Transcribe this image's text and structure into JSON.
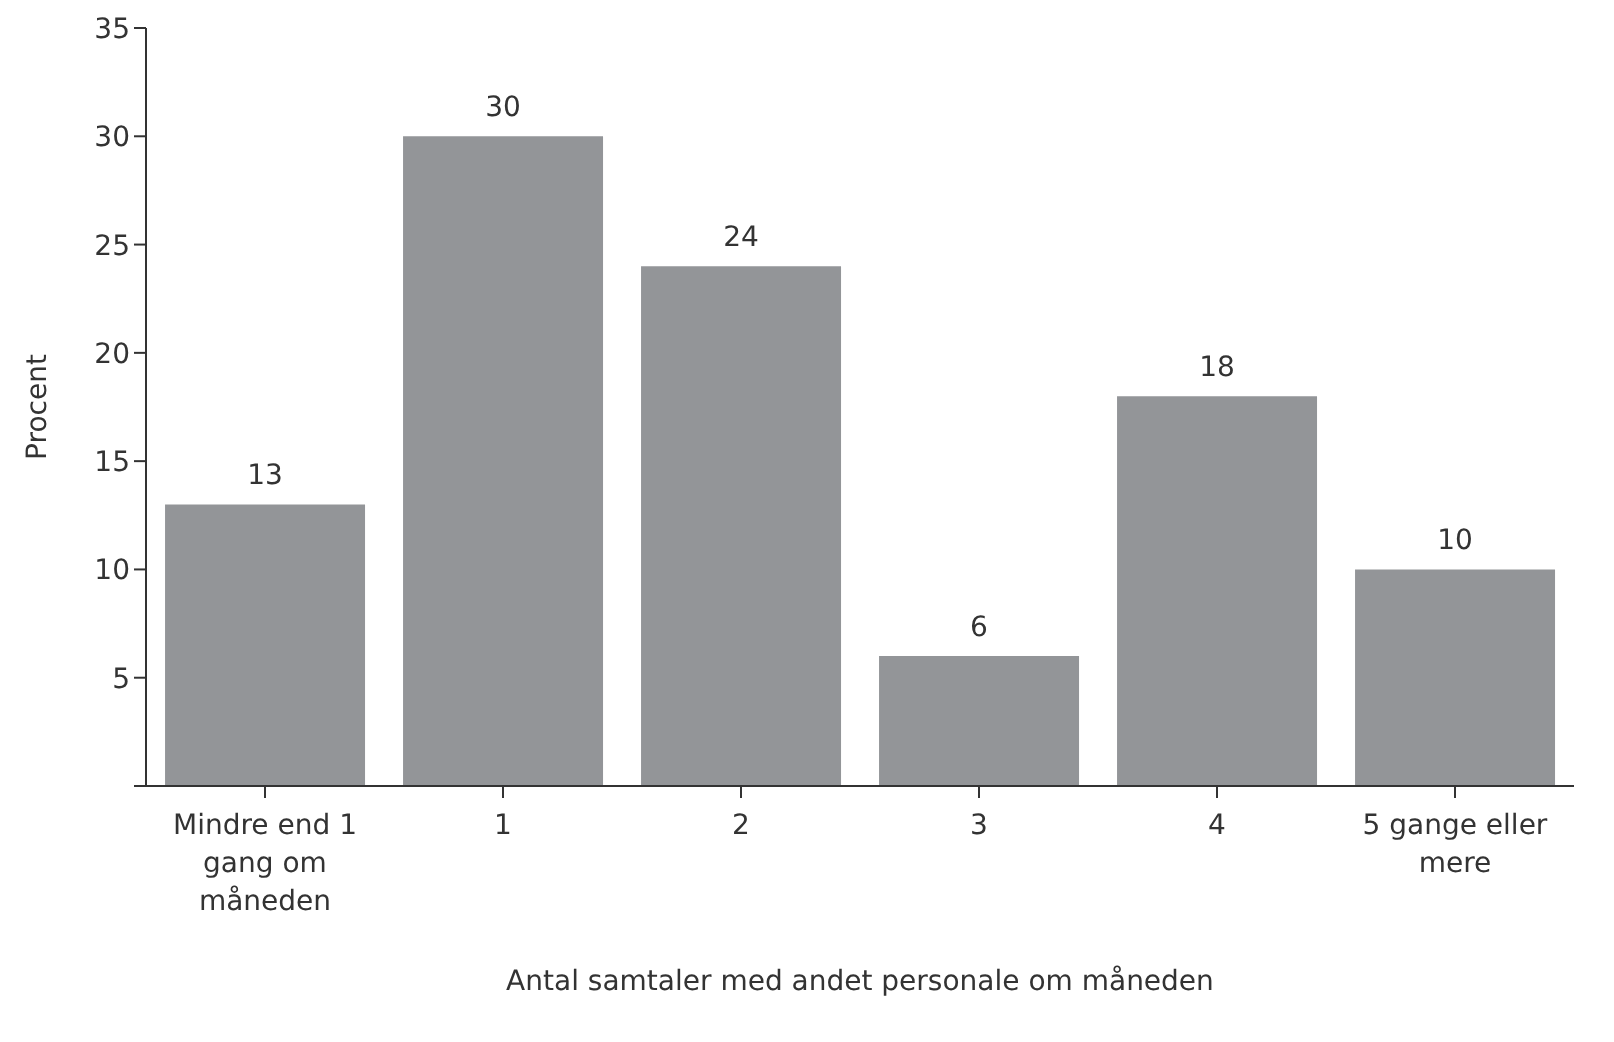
{
  "chart_data": {
    "type": "bar",
    "xlabel": "Antal samtaler med andet personale om måneden",
    "ylabel": "Procent",
    "categories": [
      "Mindre end 1 gang om måneden",
      "1",
      "2",
      "3",
      "4",
      "5 gange eller mere"
    ],
    "values": [
      13,
      30,
      24,
      6,
      18,
      10
    ],
    "color": "#939598",
    "ylim": [
      0,
      35
    ],
    "yticks": [
      {
        "value": 0,
        "label": null
      },
      5,
      10,
      15,
      20,
      25,
      30,
      35
    ],
    "data_labels": true
  }
}
